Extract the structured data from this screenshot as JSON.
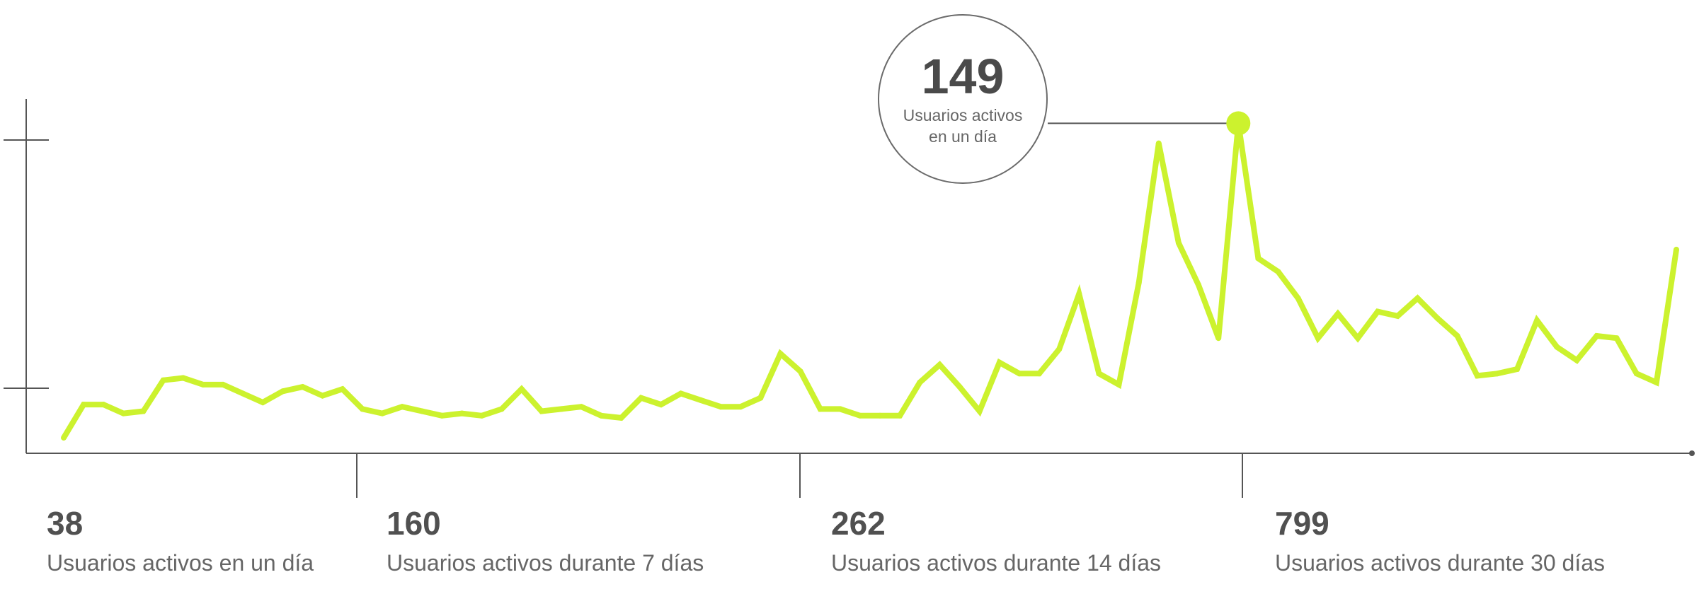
{
  "colors": {
    "line": "#CCF22E",
    "axis": "#555555",
    "text": "#505050",
    "tooltip_border": "#6b6b6b"
  },
  "tooltip": {
    "value": "149",
    "label": "Usuarios activos en un día"
  },
  "stats": [
    {
      "value": "38",
      "label": "Usuarios activos en un día"
    },
    {
      "value": "160",
      "label": "Usuarios activos durante 7 días"
    },
    {
      "value": "262",
      "label": "Usuarios activos durante 14 días"
    },
    {
      "value": "799",
      "label": "Usuarios activos durante 30 días"
    }
  ],
  "chart_data": {
    "type": "line",
    "title": "",
    "xlabel": "",
    "ylabel": "",
    "grid": false,
    "ylim": [
      0,
      160
    ],
    "highlight_index": 59,
    "series": [
      {
        "values": [
          7,
          22,
          22,
          18,
          19,
          33,
          34,
          31,
          31,
          27,
          23,
          28,
          30,
          26,
          29,
          20,
          18,
          21,
          19,
          17,
          18,
          17,
          20,
          29,
          19,
          20,
          21,
          17,
          16,
          25,
          22,
          27,
          24,
          21,
          21,
          25,
          45,
          37,
          20,
          20,
          17,
          17,
          17,
          32,
          40,
          30,
          19,
          41,
          36,
          36,
          47,
          72,
          36,
          31,
          77,
          140,
          95,
          76,
          52,
          149,
          88,
          82,
          70,
          52,
          63,
          52,
          64,
          62,
          70,
          61,
          53,
          35,
          36,
          38,
          60,
          48,
          42,
          53,
          52,
          36,
          32,
          92
        ]
      }
    ]
  }
}
